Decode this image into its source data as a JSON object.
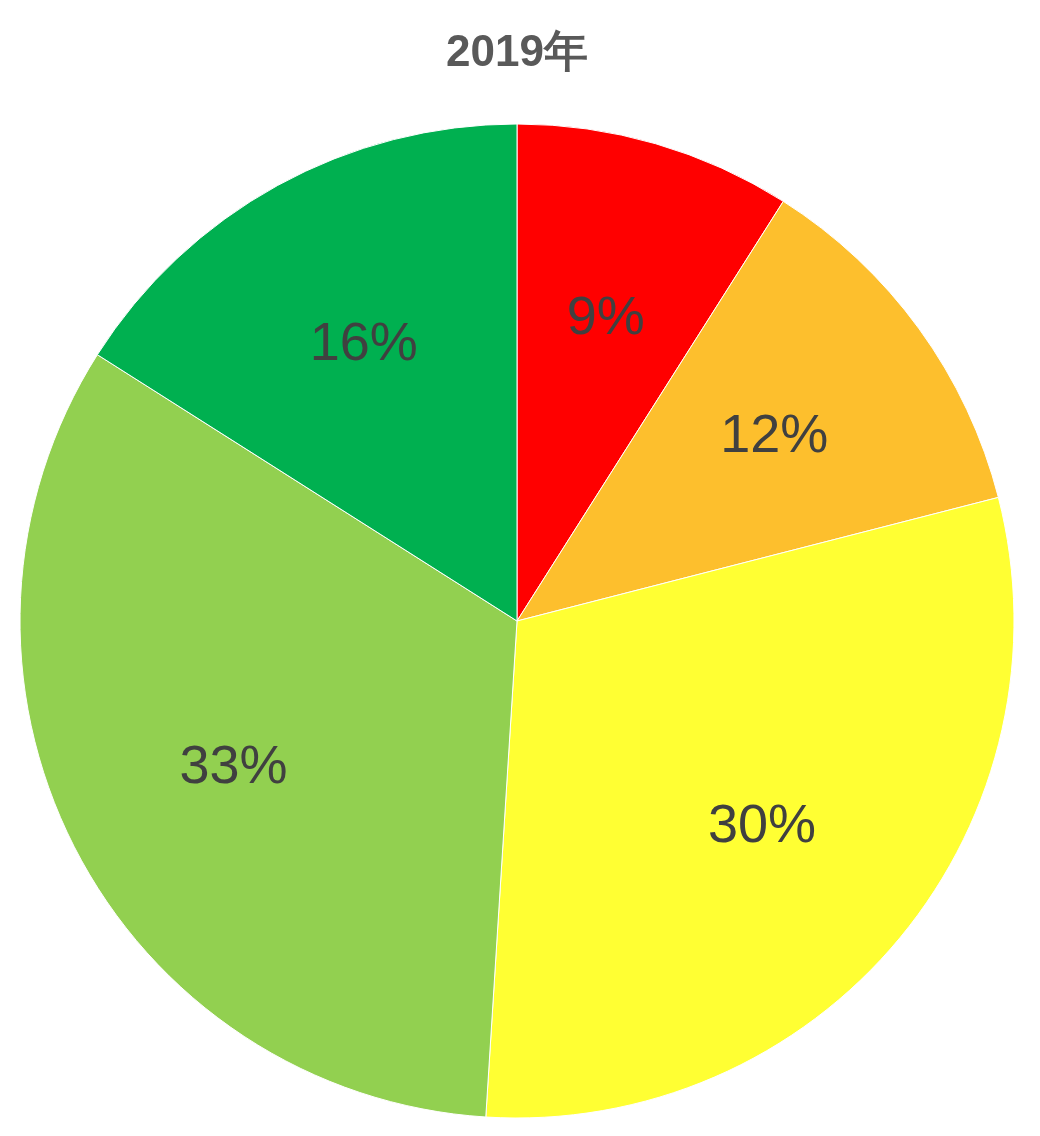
{
  "chart_data": {
    "type": "pie",
    "title": "2019年",
    "categories": [
      null,
      null,
      null,
      null,
      null
    ],
    "values": [
      9,
      12,
      30,
      33,
      16
    ],
    "colors": [
      "#ff0000",
      "#fdbf2d",
      "#ffff33",
      "#92d050",
      "#00b050"
    ],
    "value_labels": [
      "9%",
      "12%",
      "30%",
      "33%",
      "16%"
    ]
  }
}
